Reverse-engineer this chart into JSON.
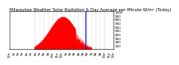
{
  "title": "Milwaukee Weather Solar Radiation & Day Average per Minute W/m² (Today)",
  "title_fontsize": 3.8,
  "bg_color": "#ffffff",
  "plot_bg_color": "#ffffff",
  "fill_color": "#ff0000",
  "line_color": "#cc0000",
  "avg_line_color": "#0000cc",
  "grid_color": "#888888",
  "tick_label_fontsize": 3.0,
  "ylabel_fontsize": 3.0,
  "ylim": [
    0,
    1000
  ],
  "xlim": [
    0,
    1440
  ],
  "y_ticks": [
    100,
    200,
    300,
    400,
    500,
    600,
    700,
    800,
    900,
    1000
  ],
  "num_points": 1440,
  "peak_time": 740,
  "peak_value": 870,
  "rise_start": 340,
  "set_end": 1140,
  "avg_x": 1055,
  "dashed_lines_x": [
    360,
    480,
    600,
    720,
    840,
    960,
    1080,
    1200,
    1320
  ],
  "dotted_lines_x": [
    420,
    540,
    660,
    780,
    900,
    1020,
    1140,
    1260
  ]
}
